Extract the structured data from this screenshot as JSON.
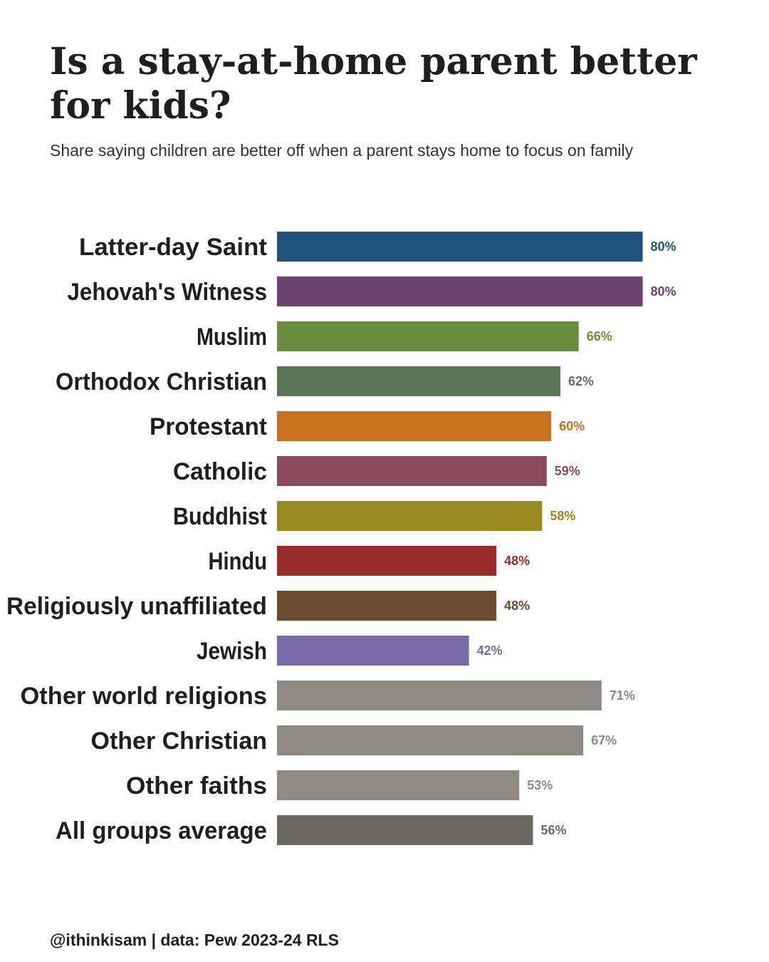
{
  "title": "Is a stay-at-home parent better for kids?",
  "subtitle": "Share saying children are better off when a parent stays home to focus on family",
  "caption": "@ithinkisam | data: Pew 2023-24 RLS",
  "chart_data": {
    "type": "bar",
    "orientation": "horizontal",
    "title": "Is a stay-at-home parent better for kids?",
    "subtitle": "Share saying children are better off when a parent stays home to focus on family",
    "xlabel": "",
    "ylabel": "",
    "xlim": [
      0,
      100
    ],
    "grid": false,
    "value_suffix": "%",
    "categories": [
      "Latter-day Saint",
      "Jehovah's Witness",
      "Muslim",
      "Orthodox Christian",
      "Protestant",
      "Catholic",
      "Buddhist",
      "Hindu",
      "Religiously unaffiliated",
      "Jewish",
      "Other world religions",
      "Other Christian",
      "Other faiths",
      "All groups average"
    ],
    "values": [
      80,
      80,
      66,
      62,
      60,
      59,
      58,
      48,
      48,
      42,
      71,
      67,
      53,
      56
    ],
    "labels": [
      "80%",
      "80%",
      "66%",
      "62%",
      "60%",
      "59%",
      "58%",
      "48%",
      "48%",
      "42%",
      "71%",
      "67%",
      "53%",
      "56%"
    ],
    "colors": [
      "#1f527c",
      "#6b446f",
      "#6a8c3c",
      "#5a7554",
      "#c8711d",
      "#8b4a5e",
      "#9a891f",
      "#9c2b2b",
      "#6b4a2e",
      "#7b6aaa",
      "#8e8a83",
      "#8e8a83",
      "#8e8a83",
      "#6b6861"
    ]
  }
}
